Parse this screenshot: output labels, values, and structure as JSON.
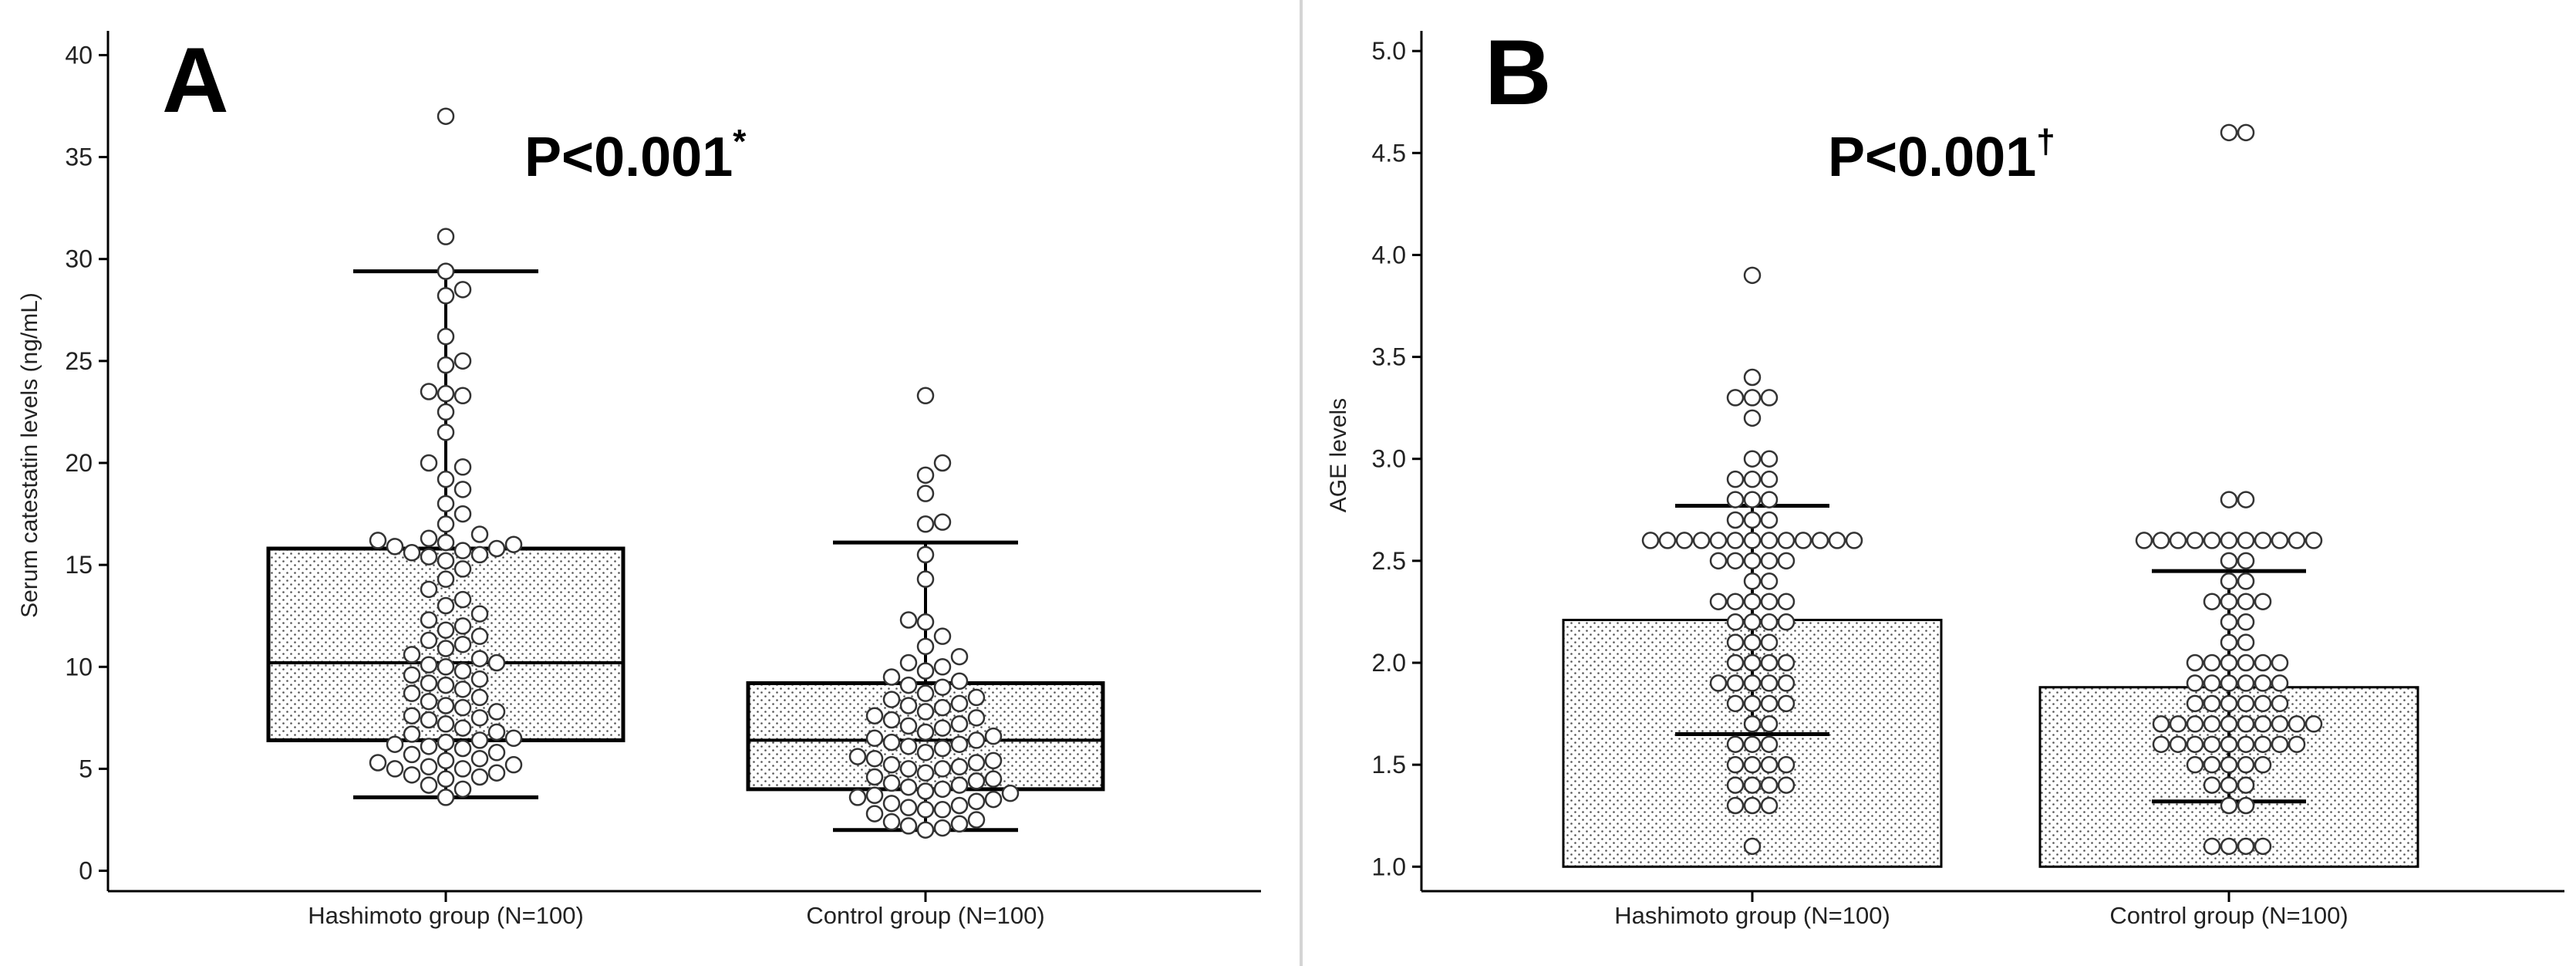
{
  "figure": {
    "divider_color": "#d4d4d4",
    "box_fill_pattern": "stipple",
    "marker_fill": "#ffffff",
    "marker_stroke": "#333333"
  },
  "chart_data": [
    {
      "type": "box",
      "panel_label": "A",
      "annotation": "P<0.001",
      "annotation_marker": "*",
      "title": "",
      "xlabel": "",
      "ylabel": "Serum catestatin levels (ng/mL)",
      "ylim": [
        -1,
        41
      ],
      "yticks": [
        "0",
        "5",
        "10",
        "15",
        "20",
        "25",
        "30",
        "35",
        "40"
      ],
      "categories": [
        "Hashimoto group (N=100)",
        "Control group (N=100)"
      ],
      "boxes": [
        {
          "whisker_low": 3.6,
          "q1": 6.4,
          "median": 10.2,
          "q3": 15.8,
          "whisker_high": 29.4
        },
        {
          "whisker_low": 2.0,
          "q1": 4.0,
          "median": 6.4,
          "q3": 9.2,
          "whisker_high": 16.1
        }
      ],
      "points": [
        [
          3.6,
          4.0,
          4.2,
          4.5,
          4.6,
          4.7,
          4.8,
          5.0,
          5.0,
          5.1,
          5.2,
          5.3,
          5.4,
          5.5,
          5.7,
          5.8,
          6.0,
          6.1,
          6.2,
          6.3,
          6.4,
          6.5,
          6.7,
          6.8,
          7.0,
          7.2,
          7.4,
          7.5,
          7.6,
          7.8,
          8.0,
          8.1,
          8.3,
          8.5,
          8.7,
          8.9,
          9.1,
          9.2,
          9.4,
          9.6,
          9.8,
          10.0,
          10.1,
          10.2,
          10.4,
          10.6,
          10.9,
          11.1,
          11.3,
          11.5,
          11.8,
          12.0,
          12.3,
          12.6,
          13.0,
          13.3,
          13.8,
          14.3,
          14.8,
          15.2,
          15.4,
          15.5,
          15.6,
          15.7,
          15.8,
          15.9,
          16.0,
          16.1,
          16.2,
          16.3,
          16.5,
          17.0,
          17.5,
          18.0,
          18.7,
          19.2,
          19.8,
          20.0,
          21.5,
          22.5,
          23.3,
          23.4,
          23.5,
          24.8,
          25.0,
          26.2,
          28.2,
          28.5,
          29.4,
          31.1,
          37.0
        ],
        [
          2.0,
          2.1,
          2.2,
          2.3,
          2.4,
          2.5,
          2.8,
          3.0,
          3.0,
          3.1,
          3.2,
          3.3,
          3.4,
          3.5,
          3.6,
          3.7,
          3.8,
          3.9,
          4.0,
          4.1,
          4.2,
          4.3,
          4.4,
          4.5,
          4.6,
          4.8,
          5.0,
          5.0,
          5.1,
          5.2,
          5.3,
          5.4,
          5.5,
          5.6,
          5.8,
          6.0,
          6.1,
          6.2,
          6.3,
          6.4,
          6.5,
          6.6,
          6.8,
          7.0,
          7.1,
          7.2,
          7.4,
          7.5,
          7.6,
          7.8,
          8.0,
          8.1,
          8.2,
          8.4,
          8.5,
          8.7,
          9.0,
          9.1,
          9.3,
          9.5,
          9.8,
          10.0,
          10.2,
          10.5,
          11.0,
          11.5,
          12.2,
          12.3,
          14.3,
          15.5,
          17.0,
          17.1,
          18.5,
          19.4,
          20.0,
          23.3
        ]
      ]
    },
    {
      "type": "bar",
      "panel_label": "B",
      "annotation": "P<0.001",
      "annotation_marker": "†",
      "title": "",
      "xlabel": "",
      "ylabel": "AGE levels",
      "ylim": [
        0.88,
        5.08
      ],
      "yticks": [
        "1.0",
        "1.5",
        "2.0",
        "2.5",
        "3.0",
        "3.5",
        "4.0",
        "4.5",
        "5.0"
      ],
      "categories": [
        "Hashimoto group (N=100)",
        "Control group (N=100)"
      ],
      "bars": [
        {
          "mean": 2.21,
          "sd_low": 1.65,
          "sd_high": 2.77
        },
        {
          "mean": 1.88,
          "sd_low": 1.32,
          "sd_high": 2.45
        }
      ],
      "points": [
        [
          1.1,
          1.3,
          1.3,
          1.3,
          1.4,
          1.4,
          1.4,
          1.4,
          1.5,
          1.5,
          1.5,
          1.5,
          1.6,
          1.6,
          1.6,
          1.7,
          1.7,
          1.8,
          1.8,
          1.8,
          1.8,
          1.9,
          1.9,
          1.9,
          1.9,
          1.9,
          2.0,
          2.0,
          2.0,
          2.0,
          2.1,
          2.1,
          2.1,
          2.2,
          2.2,
          2.2,
          2.2,
          2.3,
          2.3,
          2.3,
          2.3,
          2.3,
          2.4,
          2.4,
          2.5,
          2.5,
          2.5,
          2.5,
          2.5,
          2.6,
          2.6,
          2.6,
          2.6,
          2.6,
          2.6,
          2.6,
          2.6,
          2.6,
          2.6,
          2.6,
          2.6,
          2.6,
          2.7,
          2.7,
          2.7,
          2.8,
          2.8,
          2.8,
          2.9,
          2.9,
          2.9,
          3.0,
          3.0,
          3.2,
          3.3,
          3.3,
          3.3,
          3.4,
          3.9
        ],
        [
          1.1,
          1.1,
          1.1,
          1.1,
          1.3,
          1.3,
          1.4,
          1.4,
          1.4,
          1.5,
          1.5,
          1.5,
          1.5,
          1.5,
          1.6,
          1.6,
          1.6,
          1.6,
          1.6,
          1.6,
          1.6,
          1.6,
          1.6,
          1.7,
          1.7,
          1.7,
          1.7,
          1.7,
          1.7,
          1.7,
          1.7,
          1.7,
          1.7,
          1.8,
          1.8,
          1.8,
          1.8,
          1.8,
          1.8,
          1.9,
          1.9,
          1.9,
          1.9,
          1.9,
          1.9,
          2.0,
          2.0,
          2.0,
          2.0,
          2.0,
          2.0,
          2.1,
          2.1,
          2.2,
          2.2,
          2.3,
          2.3,
          2.3,
          2.3,
          2.4,
          2.4,
          2.5,
          2.5,
          2.6,
          2.6,
          2.6,
          2.6,
          2.6,
          2.6,
          2.6,
          2.6,
          2.6,
          2.6,
          2.6,
          2.8,
          2.8,
          4.6,
          4.6
        ]
      ]
    }
  ]
}
